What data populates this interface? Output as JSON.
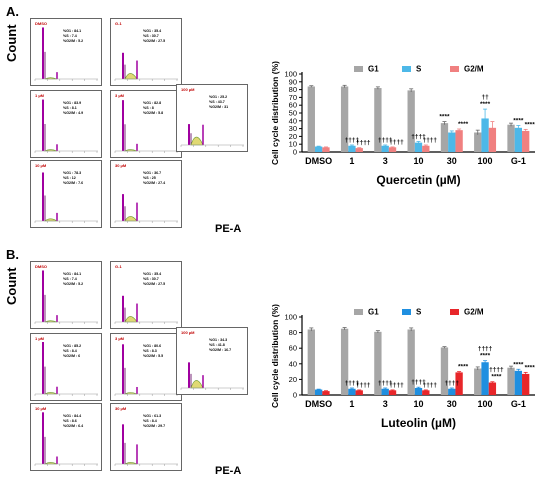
{
  "panels": [
    {
      "letter": "A.",
      "flow": {
        "y_label": "Count",
        "x_label": "PE-A",
        "histograms": [
          {
            "title": "DMSO",
            "stats": [
              "%G1 : 84.1",
              "%S : 7.4",
              "%G2/M : 5.2"
            ]
          },
          {
            "title": "G-1",
            "stats": [
              "%G1 : 35.4",
              "%S : 30.7",
              "%G2/M : 27.5"
            ]
          },
          {
            "title": "1 µM",
            "stats": [
              "%G1 : 83.9",
              "%S : 8.1",
              "%G2/M : 4.9"
            ]
          },
          {
            "title": "3 µM",
            "stats": [
              "%G1 : 82.8",
              "%S : 8",
              "%G2/M : 5.8"
            ]
          },
          {
            "title": "100 µM",
            "stats": [
              "%G1 : 25.2",
              "%S : 43.7",
              "%G2/M : 31"
            ]
          },
          {
            "title": "10 µM",
            "stats": [
              "%G1 : 78.3",
              "%S : 12",
              "%G2/M : 7.6"
            ]
          },
          {
            "title": "30 µM",
            "stats": [
              "%G1 : 36.7",
              "%S : 25",
              "%G2/M : 27.4"
            ]
          }
        ]
      }
    },
    {
      "letter": "B.",
      "flow": {
        "y_label": "Count",
        "x_label": "PE-A",
        "histograms": [
          {
            "title": "DMSO",
            "stats": [
              "%G1 : 84.1",
              "%S : 7.4",
              "%G2/M : 5.2"
            ]
          },
          {
            "title": "G-1",
            "stats": [
              "%G1 : 35.4",
              "%S : 30.7",
              "%G2/M : 27.5"
            ]
          },
          {
            "title": "1 µM",
            "stats": [
              "%G1 : 85.2",
              "%S : 8.4",
              "%G2/M : 6"
            ]
          },
          {
            "title": "3 µM",
            "stats": [
              "%G1 : 80.6",
              "%S : 8.3",
              "%G2/M : 5.5"
            ]
          },
          {
            "title": "100 µM",
            "stats": [
              "%G1 : 34.3",
              "%S : 41.8",
              "%G2/M : 16.7"
            ]
          },
          {
            "title": "10 µM",
            "stats": [
              "%G1 : 84.4",
              "%S : 8.6",
              "%G2/M : 6.4"
            ]
          },
          {
            "title": "30 µM",
            "stats": [
              "%G1 : 61.3",
              "%S : 8.4",
              "%G2/M : 29.7"
            ]
          }
        ]
      }
    }
  ],
  "chart_data": [
    {
      "type": "bar",
      "title": "",
      "xlabel": "Quercetin (µM)",
      "ylabel": "Cell cycle distribution (%)",
      "ylim": [
        0,
        100
      ],
      "yticks": [
        0,
        10,
        20,
        30,
        40,
        50,
        60,
        70,
        80,
        90,
        100
      ],
      "categories": [
        "DMSO",
        "1",
        "3",
        "10",
        "30",
        "100",
        "G-1"
      ],
      "legend_position": "top",
      "series": [
        {
          "name": "G1",
          "color": "#a6a6a6",
          "values": [
            84,
            84,
            82,
            79,
            37,
            25,
            35
          ],
          "errors": [
            1,
            1.5,
            1.5,
            2,
            2,
            3,
            2
          ]
        },
        {
          "name": "S",
          "color": "#4db8e8",
          "values": [
            7,
            8,
            8,
            12,
            25,
            43,
            31
          ],
          "errors": [
            0.5,
            1,
            1,
            1.5,
            2,
            12,
            3
          ]
        },
        {
          "name": "G2/M",
          "color": "#f08080",
          "values": [
            6,
            5,
            6,
            8,
            28,
            31,
            27
          ],
          "errors": [
            0.5,
            0.5,
            0.5,
            1,
            1.5,
            8,
            2
          ]
        }
      ],
      "annotations": [
        {
          "category": "1",
          "series": "S",
          "lines": [
            "††††"
          ]
        },
        {
          "category": "1",
          "series": "G2/M",
          "lines": [
            "††††"
          ]
        },
        {
          "category": "3",
          "series": "S",
          "lines": [
            "††††"
          ]
        },
        {
          "category": "3",
          "series": "G2/M",
          "lines": [
            "††††"
          ]
        },
        {
          "category": "10",
          "series": "S",
          "lines": [
            "††††"
          ]
        },
        {
          "category": "10",
          "series": "G2/M",
          "lines": [
            "††††"
          ]
        },
        {
          "category": "30",
          "series": "G1",
          "lines": [
            "****"
          ]
        },
        {
          "category": "30",
          "series": "G2/M",
          "lines": [
            "****"
          ]
        },
        {
          "category": "100",
          "series": "S",
          "lines": [
            "††",
            "****"
          ]
        },
        {
          "category": "G-1",
          "series": "S",
          "lines": [
            "****"
          ]
        },
        {
          "category": "G-1",
          "series": "G2/M",
          "lines": [
            "****"
          ]
        }
      ]
    },
    {
      "type": "bar",
      "title": "",
      "xlabel": "Luteolin (µM)",
      "ylabel": "Cell cycle distribution (%)",
      "ylim": [
        0,
        100
      ],
      "yticks": [
        0,
        20,
        40,
        60,
        80,
        100
      ],
      "categories": [
        "DMSO",
        "1",
        "3",
        "10",
        "30",
        "100",
        "G-1"
      ],
      "legend_position": "top",
      "series": [
        {
          "name": "G1",
          "color": "#a6a6a6",
          "values": [
            84,
            85,
            81,
            84,
            61,
            34,
            35
          ],
          "errors": [
            2,
            1.5,
            1.5,
            2,
            1,
            2,
            2
          ]
        },
        {
          "name": "S",
          "color": "#1f8fe0",
          "values": [
            7,
            8,
            8,
            9,
            8,
            42,
            31
          ],
          "errors": [
            0.5,
            1,
            1,
            1,
            1,
            2,
            2
          ]
        },
        {
          "name": "G2/M",
          "color": "#e8262a",
          "values": [
            5,
            6,
            6,
            6,
            29,
            16,
            27
          ],
          "errors": [
            0.5,
            0.5,
            0.5,
            0.5,
            1,
            1,
            2
          ]
        }
      ],
      "annotations": [
        {
          "category": "1",
          "series": "S",
          "lines": [
            "††††"
          ]
        },
        {
          "category": "1",
          "series": "G2/M",
          "lines": [
            "††††"
          ]
        },
        {
          "category": "3",
          "series": "S",
          "lines": [
            "††††"
          ]
        },
        {
          "category": "3",
          "series": "G2/M",
          "lines": [
            "††††"
          ]
        },
        {
          "category": "10",
          "series": "S",
          "lines": [
            "††††"
          ]
        },
        {
          "category": "10",
          "series": "G2/M",
          "lines": [
            "††††"
          ]
        },
        {
          "category": "30",
          "series": "S",
          "lines": [
            "††††"
          ]
        },
        {
          "category": "30",
          "series": "G2/M",
          "lines": [
            "****"
          ]
        },
        {
          "category": "100",
          "series": "S",
          "lines": [
            "††††",
            "****"
          ]
        },
        {
          "category": "100",
          "series": "G2/M",
          "lines": [
            "††††",
            "****"
          ]
        },
        {
          "category": "G-1",
          "series": "S",
          "lines": [
            "****"
          ]
        },
        {
          "category": "G-1",
          "series": "G2/M",
          "lines": [
            "****"
          ]
        }
      ]
    }
  ]
}
